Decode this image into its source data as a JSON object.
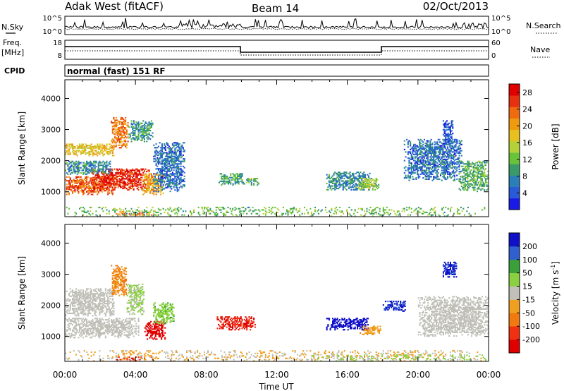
{
  "header": {
    "station": "Adak West (fitACF)",
    "beam": "Beam 14",
    "date": "02/Oct/2013"
  },
  "panels": {
    "nsky": {
      "label": "N.Sky",
      "ticks_left": [
        "10^5",
        "10^0"
      ],
      "ticks_right": [
        "10^5",
        "10^0"
      ],
      "right_label": "N.Search"
    },
    "freq": {
      "label_line1": "Freq.",
      "label_line2": "[MHz]",
      "ticks_left": [
        "18",
        "8"
      ],
      "ticks_right": [
        "60",
        "0"
      ],
      "right_label": "Nave",
      "cpid_label": "CPID"
    },
    "cpid_text": "normal (fast) 151 RF"
  },
  "chart_data": [
    {
      "type": "heatmap",
      "title": "",
      "ylabel": "Slant Range [km]",
      "xlabel": "",
      "x_ticks": [
        "00:00",
        "04:00",
        "08:00",
        "12:00",
        "16:00",
        "20:00",
        "00:00"
      ],
      "x_range_hours": [
        0,
        24
      ],
      "ylim": [
        200,
        4600
      ],
      "y_ticks": [
        1000,
        2000,
        3000,
        4000
      ],
      "colorbar": {
        "label": "Power [dB]",
        "ticks": [
          4,
          8,
          12,
          16,
          20,
          24,
          28
        ],
        "range": [
          0,
          30
        ],
        "colors": [
          "#1a1ae6",
          "#2a5bd7",
          "#2b7fb8",
          "#3a9a6a",
          "#68c23a",
          "#b5d13a",
          "#e8c020",
          "#f09a10",
          "#f06a10",
          "#e63010",
          "#e00000"
        ]
      },
      "echo_regions": [
        {
          "t": [
            0.0,
            2.8
          ],
          "r": [
            900,
            1500
          ],
          "value": 24
        },
        {
          "t": [
            1.5,
            4.8
          ],
          "r": [
            1050,
            1750
          ],
          "value": 27
        },
        {
          "t": [
            0.0,
            2.6
          ],
          "r": [
            1550,
            2000
          ],
          "value": 8
        },
        {
          "t": [
            0.0,
            2.8
          ],
          "r": [
            2150,
            2550
          ],
          "value": 18
        },
        {
          "t": [
            2.6,
            3.6
          ],
          "r": [
            2400,
            3400
          ],
          "value": 22
        },
        {
          "t": [
            3.6,
            5.0
          ],
          "r": [
            2600,
            3300
          ],
          "value": 9
        },
        {
          "t": [
            4.4,
            5.6
          ],
          "r": [
            900,
            1600
          ],
          "value": 20
        },
        {
          "t": [
            5.0,
            6.8
          ],
          "r": [
            1000,
            2600
          ],
          "value": 6
        },
        {
          "t": [
            8.7,
            10.2
          ],
          "r": [
            1200,
            1600
          ],
          "value": 10
        },
        {
          "t": [
            10.2,
            11.0
          ],
          "r": [
            1200,
            1450
          ],
          "value": 11
        },
        {
          "t": [
            14.8,
            17.3
          ],
          "r": [
            1050,
            1650
          ],
          "value": 8
        },
        {
          "t": [
            16.6,
            17.8
          ],
          "r": [
            1050,
            1450
          ],
          "value": 14
        },
        {
          "t": [
            19.2,
            22.5
          ],
          "r": [
            1350,
            2700
          ],
          "value": 6
        },
        {
          "t": [
            22.3,
            24.0
          ],
          "r": [
            1000,
            2000
          ],
          "value": 11
        },
        {
          "t": [
            21.4,
            22.0
          ],
          "r": [
            2500,
            3300
          ],
          "value": 4
        },
        {
          "t": [
            2.5,
            5.0
          ],
          "r": [
            200,
            380
          ],
          "value": 23
        },
        {
          "t": [
            0.0,
            24.0
          ],
          "r": [
            200,
            520
          ],
          "value": 12
        }
      ]
    },
    {
      "type": "heatmap",
      "title": "",
      "ylabel": "Slant Range [km]",
      "xlabel": "Time UT",
      "x_ticks": [
        "00:00",
        "04:00",
        "08:00",
        "12:00",
        "16:00",
        "20:00",
        "00:00"
      ],
      "x_range_hours": [
        0,
        24
      ],
      "ylim": [
        200,
        4600
      ],
      "y_ticks": [
        1000,
        2000,
        3000,
        4000
      ],
      "colorbar": {
        "label": "Velocity [m s^-1]",
        "ticks": [
          200,
          100,
          50,
          15,
          -15,
          -50,
          -100,
          -200
        ],
        "range": [
          -250,
          250
        ],
        "ground_scatter": "#c0c0b8",
        "colors": [
          "#e00000",
          "#f03010",
          "#f07a10",
          "#f0a020",
          "#c0c0b8",
          "#8ad040",
          "#3aa03a",
          "#3060d0",
          "#1010c8"
        ]
      },
      "echo_regions": [
        {
          "t": [
            0.0,
            4.2
          ],
          "r": [
            950,
            1600
          ],
          "value": 0,
          "ground": true
        },
        {
          "t": [
            0.0,
            2.8
          ],
          "r": [
            1650,
            2550
          ],
          "value": 0,
          "ground": true
        },
        {
          "t": [
            2.6,
            3.5
          ],
          "r": [
            2300,
            3300
          ],
          "value": -90
        },
        {
          "t": [
            3.5,
            4.5
          ],
          "r": [
            1700,
            2700
          ],
          "value": 40
        },
        {
          "t": [
            4.5,
            5.7
          ],
          "r": [
            900,
            1500
          ],
          "value": -220
        },
        {
          "t": [
            5.0,
            6.2
          ],
          "r": [
            1400,
            2100
          ],
          "value": 60
        },
        {
          "t": [
            8.6,
            10.8
          ],
          "r": [
            1200,
            1650
          ],
          "value": -200
        },
        {
          "t": [
            14.8,
            17.2
          ],
          "r": [
            1200,
            1600
          ],
          "value": 230
        },
        {
          "t": [
            16.7,
            17.9
          ],
          "r": [
            1050,
            1350
          ],
          "value": -60
        },
        {
          "t": [
            18.0,
            19.3
          ],
          "r": [
            1800,
            2150
          ],
          "value": 200
        },
        {
          "t": [
            21.4,
            22.2
          ],
          "r": [
            2900,
            3400
          ],
          "value": 210
        },
        {
          "t": [
            20.0,
            24.0
          ],
          "r": [
            1000,
            2300
          ],
          "value": 0,
          "ground": true
        },
        {
          "t": [
            2.5,
            5.0
          ],
          "r": [
            200,
            360
          ],
          "value": -180
        },
        {
          "t": [
            0.0,
            24.0
          ],
          "r": [
            200,
            560
          ],
          "value": -30
        },
        {
          "t": [
            14.0,
            24.0
          ],
          "r": [
            200,
            420
          ],
          "value": 40
        }
      ]
    }
  ]
}
